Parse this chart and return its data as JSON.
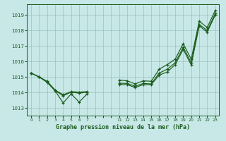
{
  "background_color": "#c8e8e8",
  "grid_color": "#9bbfbf",
  "line_color": "#1a5c1a",
  "xlim": [
    -0.5,
    23.5
  ],
  "ylim": [
    1012.5,
    1019.7
  ],
  "yticks": [
    1013,
    1014,
    1015,
    1016,
    1017,
    1018,
    1019
  ],
  "ytick_labels": [
    "1013",
    "1014",
    "1015",
    "1016",
    "1017",
    "1018",
    "1019"
  ],
  "xtick_labels": [
    "0",
    "1",
    "2",
    "3",
    "4",
    "5",
    "6",
    "7",
    "",
    "",
    "",
    "11",
    "12",
    "13",
    "14",
    "15",
    "16",
    "17",
    "18",
    "19",
    "20",
    "21",
    "22",
    "23"
  ],
  "title": "Graphe pression niveau de la mer (hPa)",
  "series_top": [
    1015.25,
    1015.0,
    1014.72,
    1014.15,
    1013.85,
    1014.05,
    1014.02,
    1014.05,
    null,
    null,
    null,
    1014.8,
    1014.75,
    1014.55,
    1014.75,
    1014.72,
    1015.5,
    1015.8,
    1016.15,
    1017.15,
    1016.15,
    1018.6,
    1018.2,
    1019.3
  ],
  "series_mid": [
    1015.25,
    1015.0,
    1014.68,
    1014.12,
    1013.78,
    1014.02,
    1013.95,
    1014.02,
    null,
    null,
    null,
    1014.6,
    1014.58,
    1014.4,
    1014.58,
    1014.55,
    1015.25,
    1015.5,
    1015.92,
    1016.92,
    1015.92,
    1018.4,
    1018.0,
    1019.1
  ],
  "series_low": [
    1015.25,
    1015.0,
    1014.65,
    1014.1,
    1013.32,
    1013.9,
    1013.38,
    1013.9,
    null,
    null,
    null,
    1014.52,
    1014.5,
    1014.32,
    1014.5,
    1014.5,
    1015.12,
    1015.32,
    1015.8,
    1016.78,
    1015.78,
    1018.3,
    1017.9,
    1019.0
  ]
}
